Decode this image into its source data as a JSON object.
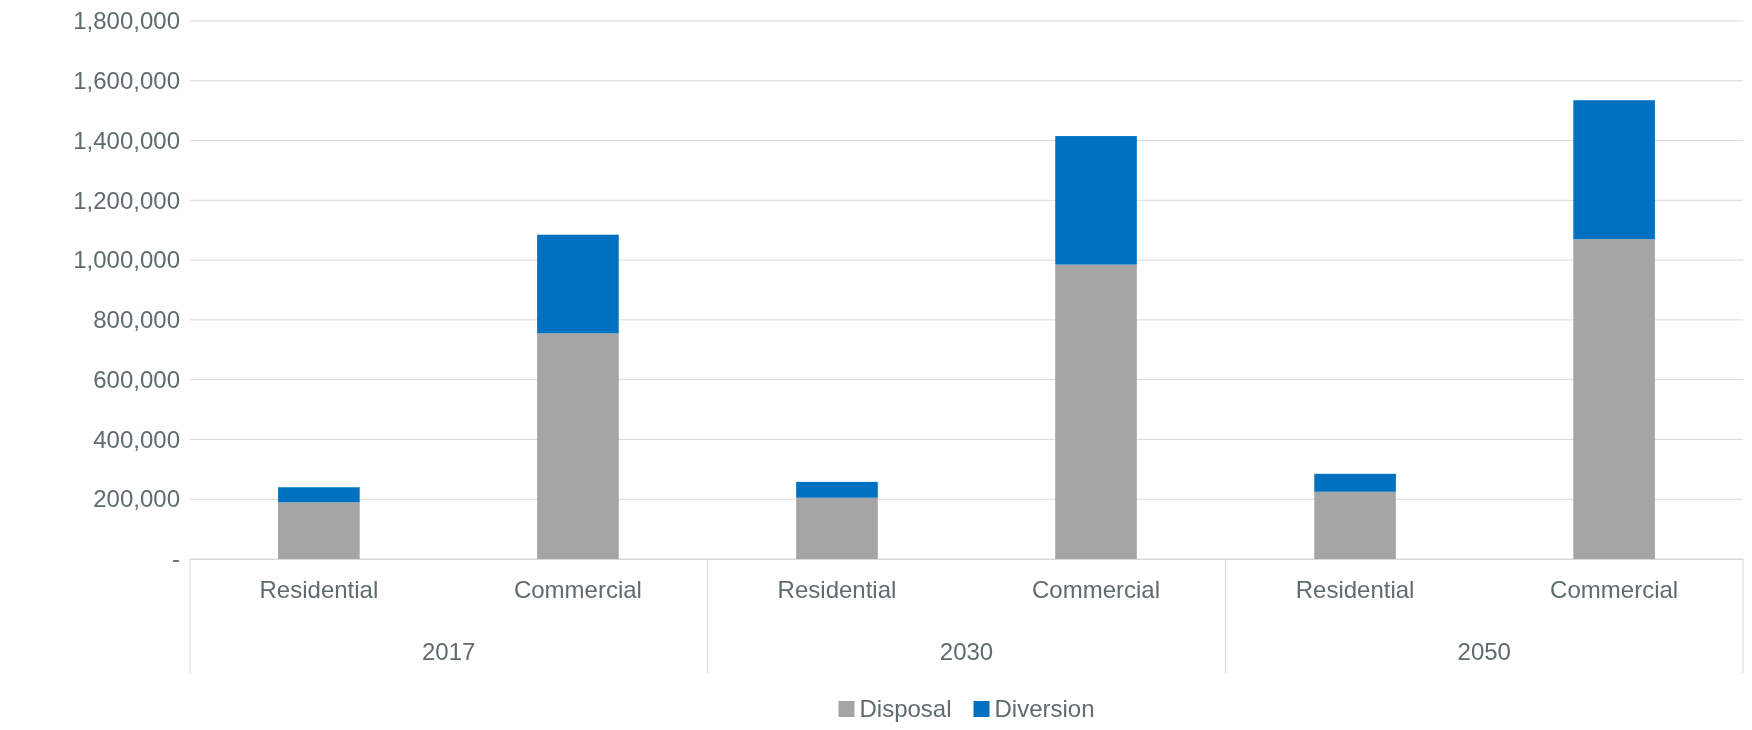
{
  "chart_data": {
    "type": "bar",
    "stacked": true,
    "categories": [
      "Residential",
      "Commercial",
      "Residential",
      "Commercial",
      "Residential",
      "Commercial"
    ],
    "series": [
      {
        "name": "Disposal",
        "color": "#a5a5a5",
        "values": [
          190000,
          755000,
          205000,
          985000,
          225000,
          1070000
        ]
      },
      {
        "name": "Diversion",
        "color": "#0070c0",
        "values": [
          50000,
          330000,
          53000,
          430000,
          60000,
          465000
        ]
      }
    ],
    "annotations": [
      "2017",
      "2030",
      "2050"
    ],
    "ylim": [
      0,
      1800000
    ],
    "yticks": [
      {
        "value": 0,
        "label": "-"
      },
      {
        "value": 200000,
        "label": "200,000"
      },
      {
        "value": 400000,
        "label": "400,000"
      },
      {
        "value": 600000,
        "label": "600,000"
      },
      {
        "value": 800000,
        "label": "800,000"
      },
      {
        "value": 1000000,
        "label": "1,000,000"
      },
      {
        "value": 1200000,
        "label": "1,200,000"
      },
      {
        "value": 1400000,
        "label": "1,400,000"
      },
      {
        "value": 1600000,
        "label": "1,600,000"
      },
      {
        "value": 1800000,
        "label": "1,800,000"
      }
    ],
    "grid": "y",
    "legend": "bottom"
  }
}
